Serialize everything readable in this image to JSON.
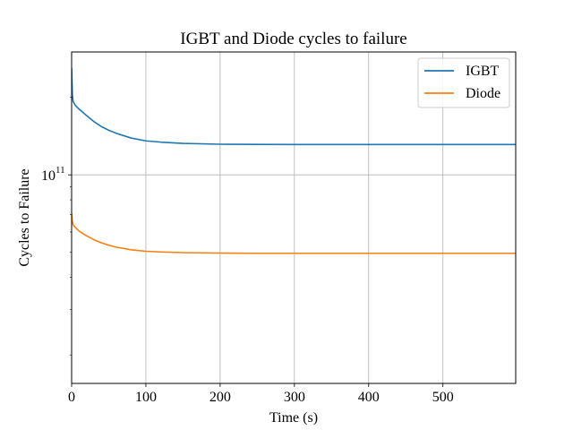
{
  "chart_data": {
    "type": "line",
    "title": "IGBT and Diode cycles to failure",
    "xlabel": "Time (s)",
    "ylabel": "Cycles to Failure",
    "xlim": [
      0,
      598
    ],
    "ylim": [
      15500000000.0,
      300000000000.0
    ],
    "yscale": "log",
    "grid": true,
    "legend_position": "top-right",
    "x_ticks": [
      0,
      100,
      200,
      300,
      400,
      500
    ],
    "x_tick_labels": [
      "0",
      "100",
      "200",
      "300",
      "400",
      "500"
    ],
    "y_ticks": [
      100000000000.0
    ],
    "y_tick_labels": [
      {
        "base": "10",
        "exp": "11"
      }
    ],
    "series": [
      {
        "name": "IGBT",
        "color": "#1f77b4",
        "x": [
          0,
          1,
          2,
          5,
          10,
          20,
          30,
          40,
          50,
          60,
          80,
          100,
          120,
          150,
          200,
          250,
          300,
          400,
          500,
          598
        ],
        "y": [
          260000000000.0,
          205000000000.0,
          193000000000.0,
          186000000000.0,
          180000000000.0,
          170000000000.0,
          161000000000.0,
          154000000000.0,
          149000000000.0,
          145000000000.0,
          139000000000.0,
          135500000000.0,
          134000000000.0,
          132500000000.0,
          131500000000.0,
          131300000000.0,
          131200000000.0,
          131200000000.0,
          131200000000.0,
          131200000000.0
        ]
      },
      {
        "name": "Diode",
        "color": "#ff7f0e",
        "x": [
          0,
          1,
          2,
          5,
          10,
          20,
          30,
          40,
          50,
          60,
          80,
          100,
          120,
          150,
          200,
          250,
          300,
          400,
          500,
          598
        ],
        "y": [
          71000000000.0,
          66000000000.0,
          64000000000.0,
          62500000000.0,
          60500000000.0,
          58000000000.0,
          56000000000.0,
          54500000000.0,
          53300000000.0,
          52400000000.0,
          51200000000.0,
          50500000000.0,
          50200000000.0,
          49900000000.0,
          49700000000.0,
          49600000000.0,
          49600000000.0,
          49600000000.0,
          49600000000.0,
          49600000000.0
        ]
      }
    ]
  }
}
